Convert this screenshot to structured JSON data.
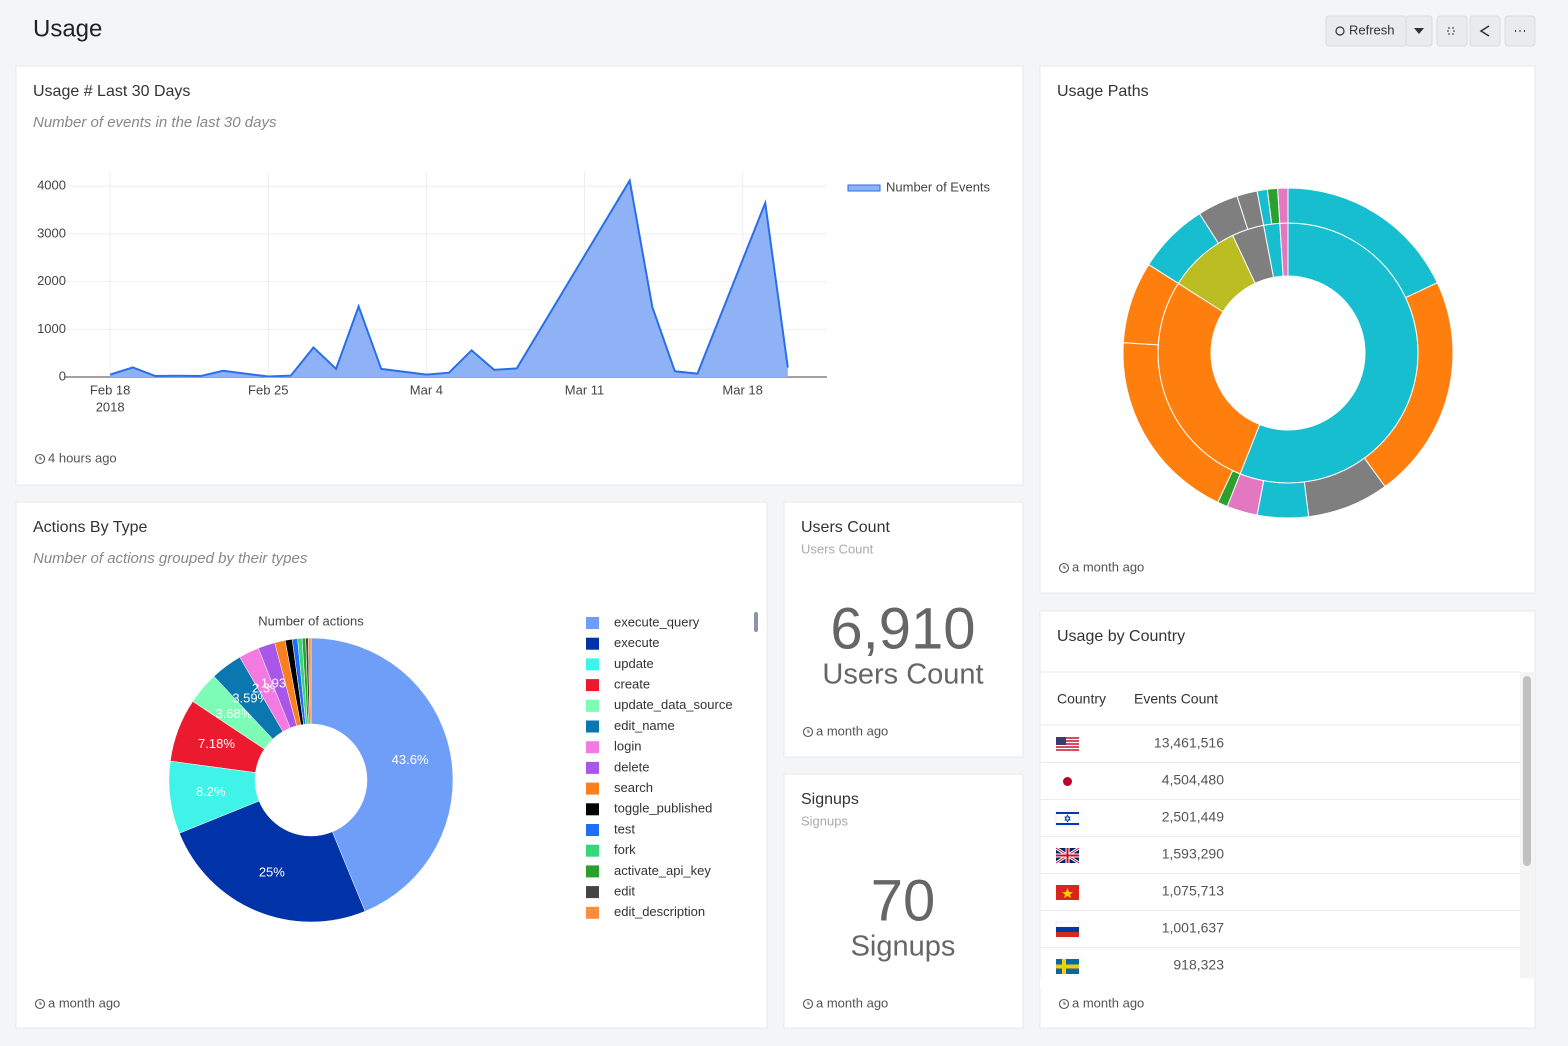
{
  "header": {
    "title": "Usage",
    "refresh": "Refresh"
  },
  "chart_data": [
    {
      "type": "line",
      "title": "Usage # Last 30 Days",
      "subtitle": "Number of events in the last 30 days",
      "footer": "4 hours ago",
      "x": [
        "2018-02-18",
        "2018-02-19",
        "2018-02-20",
        "2018-02-21",
        "2018-02-22",
        "2018-02-23",
        "2018-02-25",
        "2018-02-26",
        "2018-02-27",
        "2018-02-28",
        "2018-03-01",
        "2018-03-02",
        "2018-03-04",
        "2018-03-05",
        "2018-03-06",
        "2018-03-07",
        "2018-03-08",
        "2018-03-13",
        "2018-03-14",
        "2018-03-15",
        "2018-03-16",
        "2018-03-19",
        "2018-03-20"
      ],
      "series": [
        {
          "name": "Number of Events",
          "color": "#2a6fe8",
          "fill": "#8fb2f7",
          "values": [
            50,
            200,
            20,
            25,
            20,
            130,
            10,
            30,
            620,
            170,
            1480,
            170,
            50,
            90,
            560,
            150,
            180,
            4120,
            1470,
            120,
            70,
            3650,
            200
          ]
        }
      ],
      "xlim": [
        "2018-02-16",
        "2018-03-22"
      ],
      "xticks": [
        {
          "value": "2018-02-18",
          "label": "Feb 18"
        },
        {
          "value": "2018-02-25",
          "label": "Feb 25"
        },
        {
          "value": "2018-03-04",
          "label": "Mar 4"
        },
        {
          "value": "2018-03-11",
          "label": "Mar 11"
        },
        {
          "value": "2018-03-18",
          "label": "Mar 18"
        }
      ],
      "x_year_label": "2018",
      "ylim": [
        0,
        4300
      ],
      "yticks": [
        0,
        1000,
        2000,
        3000,
        4000
      ],
      "grid": true
    },
    {
      "type": "sunburst",
      "title": "Usage Paths",
      "footer": "a month ago",
      "rings": [
        [
          {
            "value": 56,
            "color": "#17becf"
          },
          {
            "value": 28,
            "color": "#ff7f0e"
          },
          {
            "value": 9,
            "color": "#bcbd22"
          },
          {
            "value": 4,
            "color": "#7f7f7f"
          },
          {
            "value": 2,
            "color": "#17becf"
          },
          {
            "value": 1,
            "color": "#e377c2"
          }
        ],
        [
          {
            "value": 18,
            "color": "#17becf"
          },
          {
            "value": 22,
            "color": "#ff7f0e"
          },
          {
            "value": 8,
            "color": "#7f7f7f"
          },
          {
            "value": 5,
            "color": "#17becf"
          },
          {
            "value": 3,
            "color": "#e377c2"
          },
          {
            "value": 1,
            "color": "#2ca02c"
          },
          {
            "value": 19,
            "color": "#ff7f0e"
          },
          {
            "value": 8,
            "color": "#ff7f0e"
          },
          {
            "value": 7,
            "color": "#17becf"
          },
          {
            "value": 4,
            "color": "#7f7f7f"
          },
          {
            "value": 2,
            "color": "#7f7f7f"
          },
          {
            "value": 1,
            "color": "#17becf"
          },
          {
            "value": 1,
            "color": "#2ca02c"
          },
          {
            "value": 1,
            "color": "#e377c2"
          }
        ]
      ]
    },
    {
      "type": "pie",
      "title": "Actions By Type",
      "subtitle": "Number of actions grouped by their types",
      "chart_title": "Number of actions",
      "footer": "a month ago",
      "categories": [
        "execute_query",
        "execute",
        "update",
        "create",
        "update_data_source",
        "edit_name",
        "login",
        "delete",
        "search",
        "toggle_published",
        "test",
        "fork",
        "activate_api_key",
        "edit",
        "edit_description"
      ],
      "colors": [
        "#6f9ef8",
        "#0033a8",
        "#3ff3e8",
        "#eb1a2e",
        "#7dfcb6",
        "#0a77b0",
        "#f47ae2",
        "#a957e8",
        "#f97f1f",
        "#000000",
        "#1f6ef7",
        "#37d67a",
        "#2ca02c",
        "#444444",
        "#fd8d3c"
      ],
      "values": [
        43.6,
        25,
        8.2,
        7.18,
        3.68,
        3.59,
        2.3,
        1.93,
        1.2,
        0.8,
        0.6,
        0.5,
        0.4,
        0.3,
        0.3
      ],
      "value_labels": [
        "43.6%",
        "25%",
        "8.2%",
        "7.18%",
        "3.68%",
        "3.59%",
        "2.3%",
        "1.93%",
        null,
        null,
        null,
        null,
        null,
        null,
        null
      ]
    }
  ],
  "counters": [
    {
      "title": "Users Count",
      "subtitle": "Users Count",
      "value": 6910,
      "value_label": "6,910",
      "label": "Users Count",
      "footer": "a month ago"
    },
    {
      "title": "Signups",
      "subtitle": "Signups",
      "value": 70,
      "label": "Signups",
      "footer": "a month ago"
    }
  ],
  "table": {
    "title": "Usage by Country",
    "columns": [
      "Country",
      "Events Count"
    ],
    "rows": [
      "13,461,516",
      "4,504,480",
      "2,501,449",
      "1,593,290",
      "1,075,713",
      "1,001,637",
      "918,323"
    ],
    "footer": "a month ago"
  }
}
